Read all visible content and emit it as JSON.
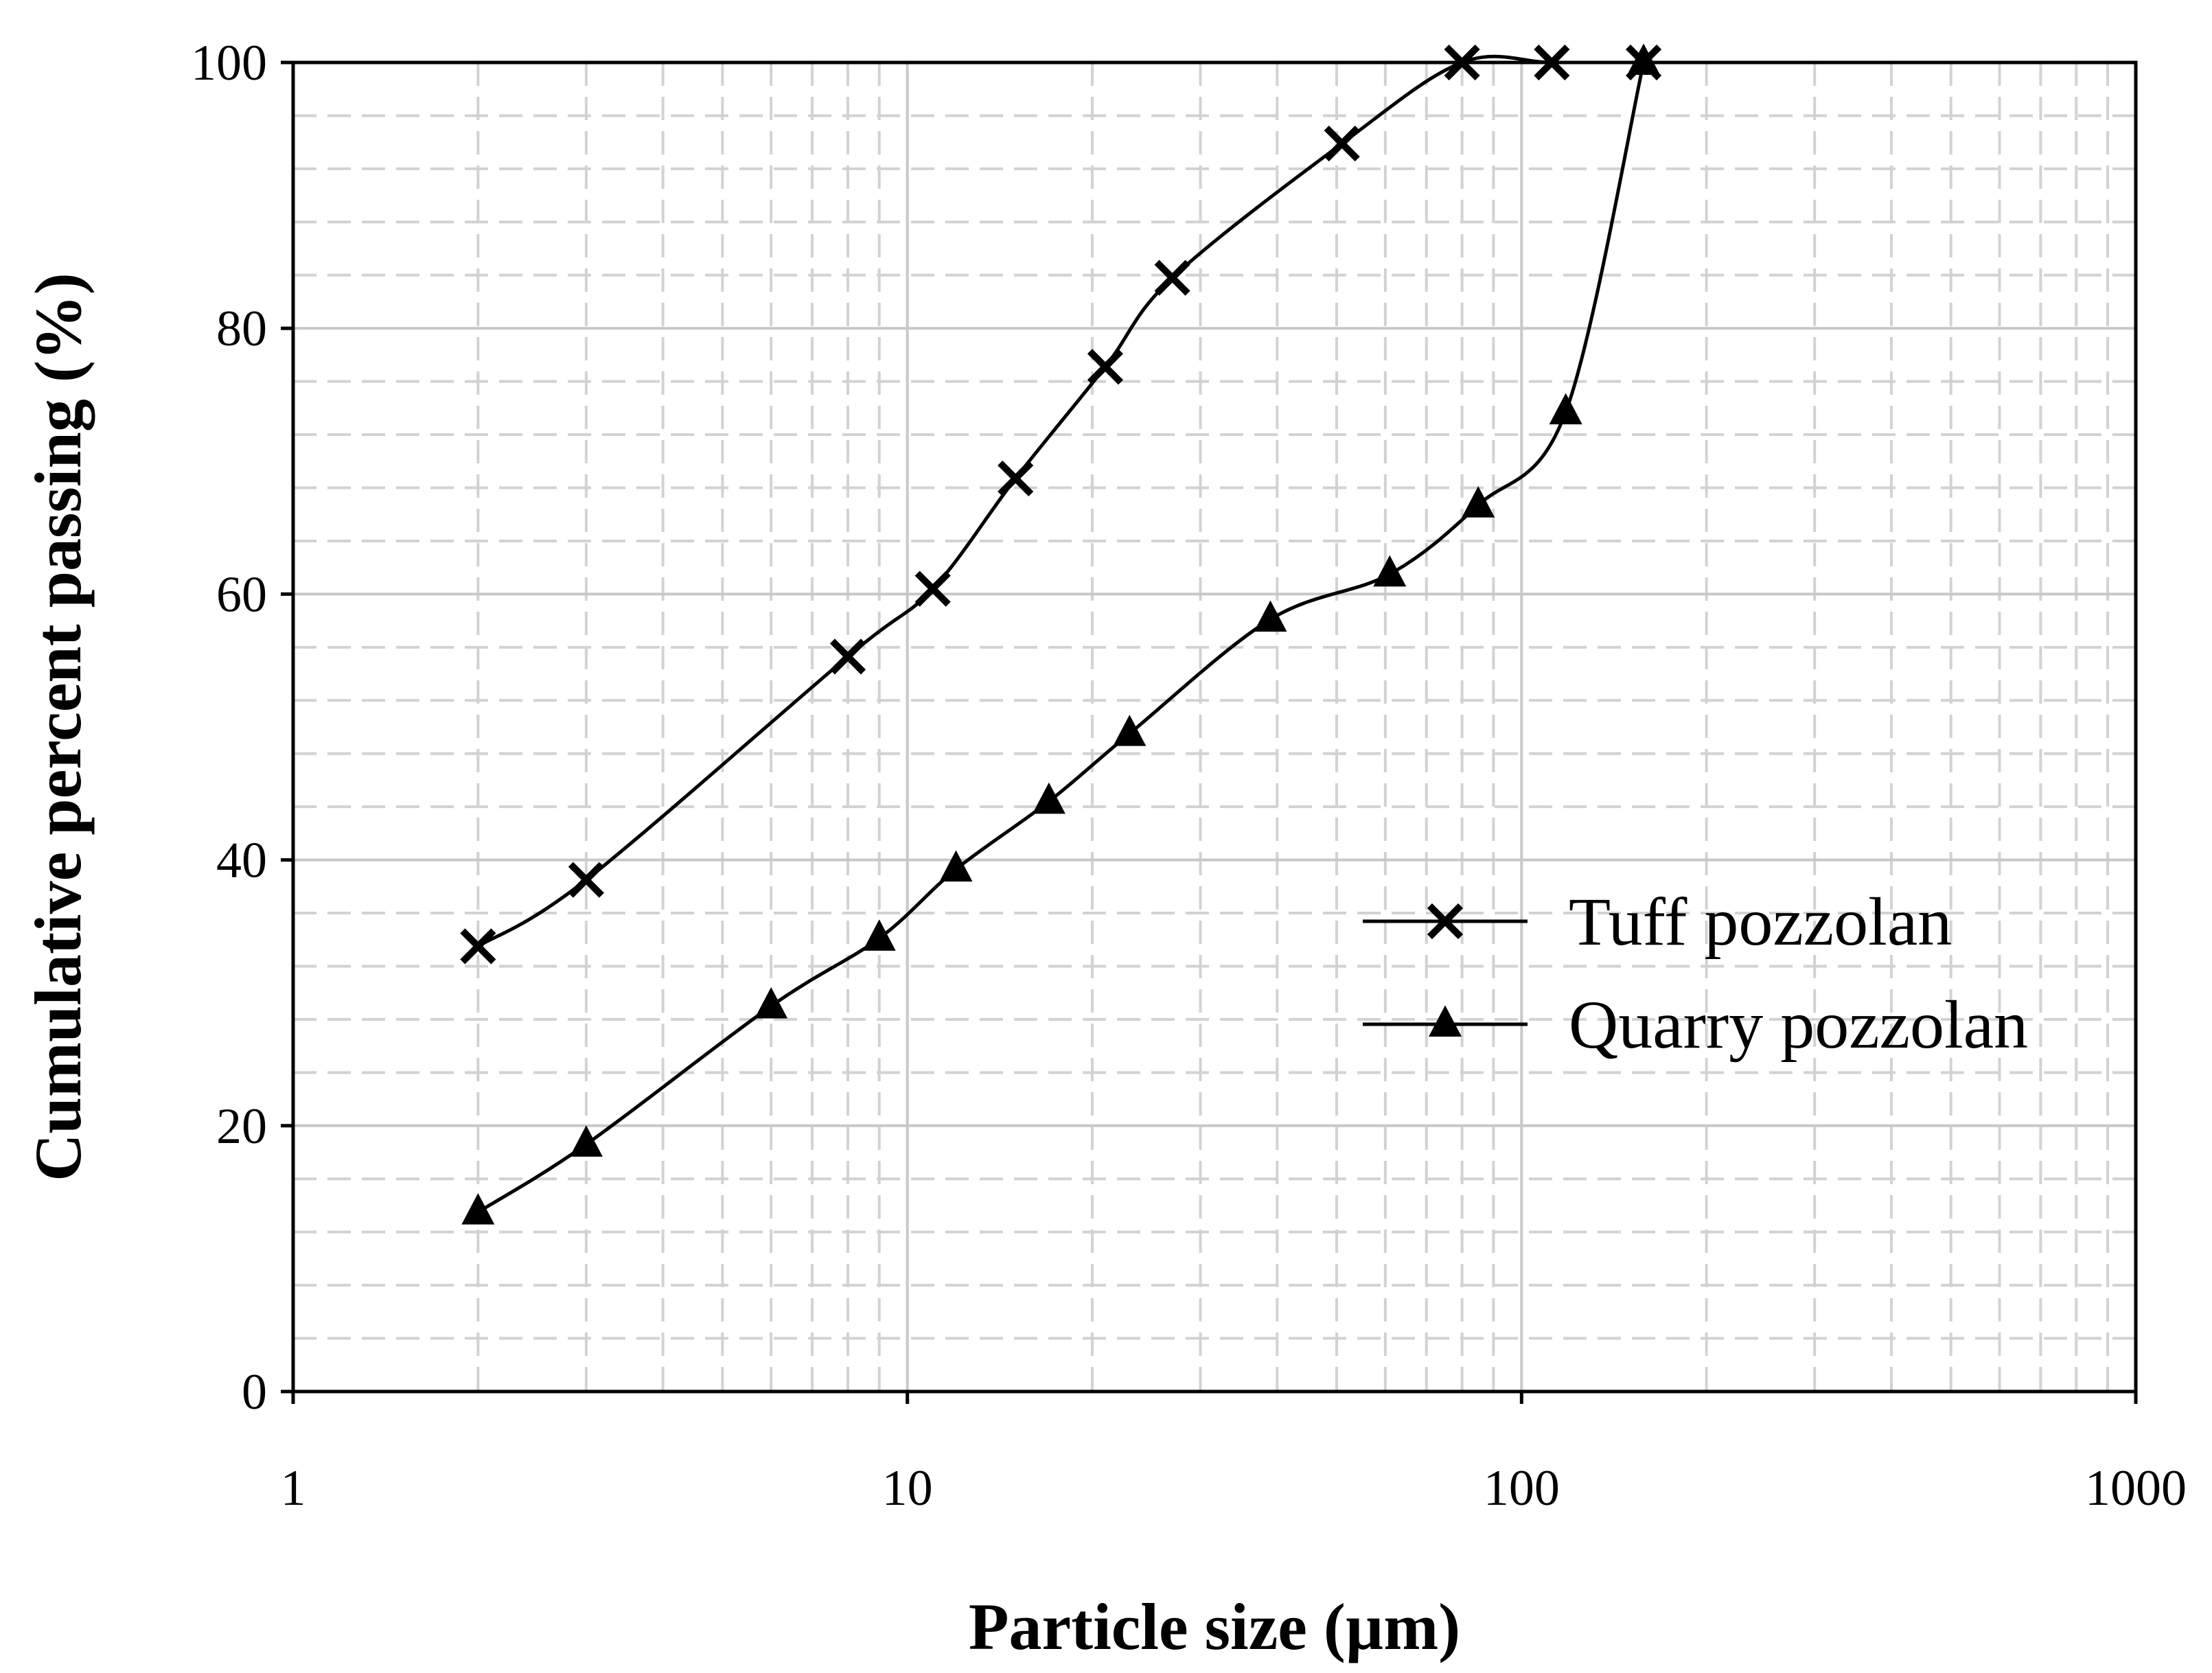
{
  "chart_data": {
    "type": "line",
    "title": "",
    "xlabel": "Particle size (µm)",
    "ylabel": "Cumulative percent passing (%)",
    "xscale": "log",
    "xlim": [
      1,
      1000
    ],
    "ylim": [
      0,
      100
    ],
    "xticks": [
      1,
      10,
      100,
      1000
    ],
    "xtick_labels": [
      "1",
      "10",
      "100",
      "1000"
    ],
    "yticks": [
      0,
      20,
      40,
      60,
      80,
      100
    ],
    "ytick_labels": [
      "0",
      "20",
      "40",
      "60",
      "80",
      "100"
    ],
    "grid": true,
    "legend_position": "center-right",
    "series": [
      {
        "name": "Tuff pozzolan",
        "marker": "x",
        "x": [
          2,
          3,
          8,
          11,
          15,
          21,
          27,
          51,
          80,
          112,
          158
        ],
        "y": [
          33.5,
          38.5,
          55.3,
          60.4,
          68.7,
          77.1,
          83.8,
          93.9,
          100,
          100,
          100
        ]
      },
      {
        "name": "Quarry pozzolan",
        "marker": "triangle",
        "x": [
          2,
          3,
          6,
          9,
          12,
          17,
          23,
          39,
          61,
          85,
          118,
          158
        ],
        "y": [
          13.5,
          18.6,
          29.0,
          34.1,
          39.3,
          44.4,
          49.5,
          58.1,
          61.5,
          66.7,
          73.7,
          100
        ]
      }
    ]
  }
}
